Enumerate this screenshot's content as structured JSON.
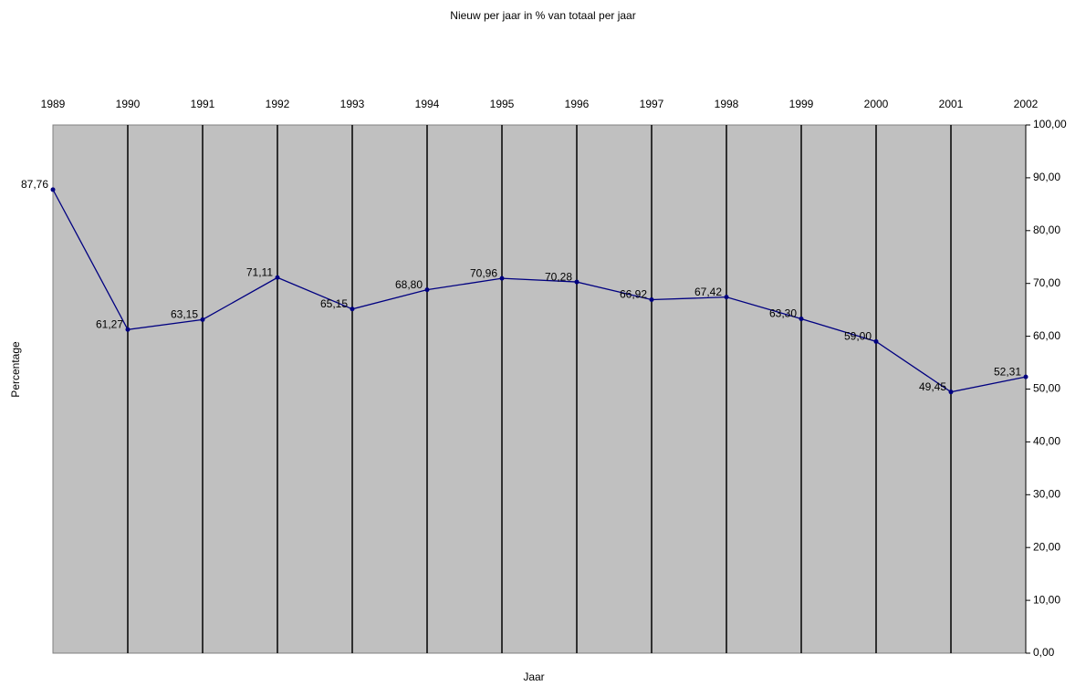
{
  "chart_data": {
    "type": "line",
    "title": "Nieuw per jaar in % van totaal per jaar",
    "x_label": "Jaar",
    "y_label": "Percentage",
    "categories": [
      "1989",
      "1990",
      "1991",
      "1992",
      "1993",
      "1994",
      "1995",
      "1996",
      "1997",
      "1998",
      "1999",
      "2000",
      "2001",
      "2002"
    ],
    "values": [
      87.76,
      61.27,
      63.15,
      71.11,
      65.15,
      68.8,
      70.96,
      70.28,
      66.92,
      67.42,
      63.3,
      59.0,
      49.45,
      52.31
    ],
    "value_labels": [
      "87,76",
      "61,27",
      "63,15",
      "71,11",
      "65,15",
      "68,80",
      "70,96",
      "70,28",
      "66,92",
      "67,42",
      "63,30",
      "59,00",
      "49,45",
      "52,31"
    ],
    "color": "#000080",
    "ylim": [
      0,
      100
    ],
    "yticks": [
      {
        "value": 0,
        "label": "0,00"
      },
      {
        "value": 10,
        "label": "10,00"
      },
      {
        "value": 20,
        "label": "20,00"
      },
      {
        "value": 30,
        "label": "30,00"
      },
      {
        "value": 40,
        "label": "40,00"
      },
      {
        "value": 50,
        "label": "50,00"
      },
      {
        "value": 60,
        "label": "60,00"
      },
      {
        "value": 70,
        "label": "70,00"
      },
      {
        "value": 80,
        "label": "80,00"
      },
      {
        "value": 90,
        "label": "90,00"
      },
      {
        "value": 100,
        "label": "100,00"
      }
    ],
    "y_axis_side": "right",
    "x_axis_side": "top",
    "grid": false
  }
}
